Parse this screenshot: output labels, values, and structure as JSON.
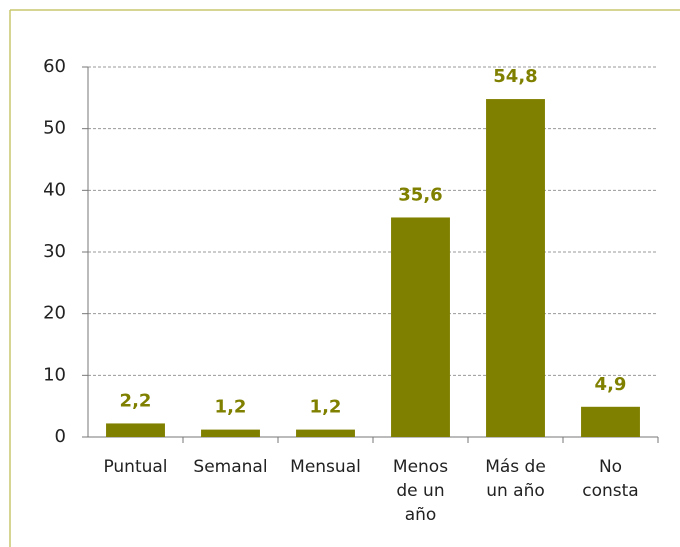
{
  "chart_data": {
    "type": "bar",
    "categories": [
      "Puntual",
      "Semanal",
      "Mensual",
      "Menos\nde un\naño",
      "Más de\nun año",
      "No\nconsta"
    ],
    "values": [
      2.2,
      1.2,
      1.2,
      35.6,
      54.8,
      4.9
    ],
    "value_labels": [
      "2,2",
      "1,2",
      "1,2",
      "35,6",
      "54,8",
      "4,9"
    ],
    "color": "#808000",
    "ylim": [
      0,
      60
    ],
    "yticks": [
      0,
      10,
      20,
      30,
      40,
      50,
      60
    ],
    "grid": true
  }
}
